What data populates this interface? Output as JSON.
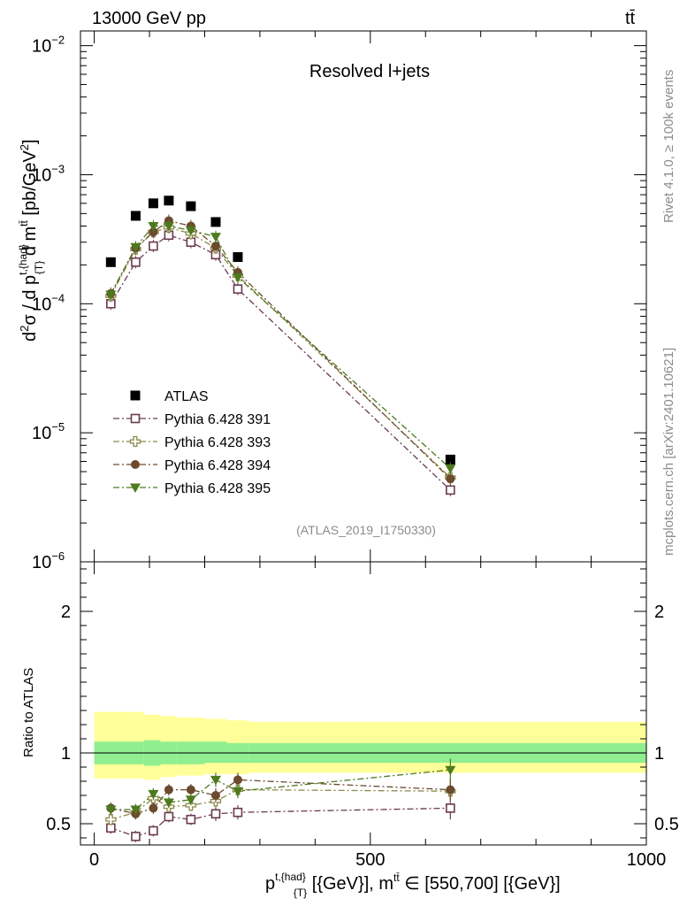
{
  "header": {
    "left_text": "13000 GeV pp",
    "right_text": "tt̄"
  },
  "side_text": {
    "rivet": "Rivet 4.1.0, ≥ 100k events",
    "mcplots": "mcplots.cern.ch [arXiv:2401.10621]"
  },
  "chart_data": [
    {
      "type": "scatter",
      "panel": "main",
      "title": "Resolved l+jets",
      "watermark": "(ATLAS_2019_I1750330)",
      "ylabel": "d²σ / d p^{t,{had}}_{T} d m^{tt̄} [pb/GeV²]",
      "yscale": "log",
      "ylim": [
        1e-06,
        0.013
      ],
      "xlim": [
        -25,
        1000
      ],
      "y_ticks": [
        {
          "value": 1e-06,
          "base": "10",
          "exp": "−6"
        },
        {
          "value": 1e-05,
          "base": "10",
          "exp": "−5"
        },
        {
          "value": 0.0001,
          "base": "10",
          "exp": "−4"
        },
        {
          "value": 0.001,
          "base": "10",
          "exp": "−3"
        },
        {
          "value": 0.01,
          "base": "10",
          "exp": "−2"
        }
      ],
      "x": [
        30,
        75,
        107,
        135,
        175,
        220,
        260,
        645
      ],
      "series": [
        {
          "name": "ATLAS",
          "marker": "square-filled",
          "color": "#000000",
          "line": "none",
          "values": [
            0.00021,
            0.00048,
            0.0006,
            0.00063,
            0.00057,
            0.00043,
            0.00023,
            6.2e-06
          ]
        },
        {
          "name": "Pythia 6.428 391",
          "marker": "square-open",
          "color": "#6b3a4f",
          "line": "dashdot",
          "values": [
            0.0001,
            0.00021,
            0.00028,
            0.00034,
            0.0003,
            0.00024,
            0.00013,
            3.6e-06
          ]
        },
        {
          "name": "Pythia 6.428 393",
          "marker": "cross-open",
          "color": "#8c8a4a",
          "line": "dashdot",
          "values": [
            0.000115,
            0.000265,
            0.00036,
            0.00039,
            0.00035,
            0.00027,
            0.000165,
            4.5e-06
          ]
        },
        {
          "name": "Pythia 6.428 394",
          "marker": "circle-filled",
          "color": "#6b4a2e",
          "line": "dashdot",
          "values": [
            0.00012,
            0.00027,
            0.00036,
            0.00044,
            0.0004,
            0.00028,
            0.000175,
            4.4e-06
          ]
        },
        {
          "name": "Pythia 6.428 395",
          "marker": "triangle-down-filled",
          "color": "#4e7a1e",
          "line": "dashdot",
          "values": [
            0.000118,
            0.000275,
            0.0004,
            0.0004,
            0.00037,
            0.00033,
            0.00016,
            5.3e-06
          ]
        }
      ]
    },
    {
      "type": "scatter",
      "panel": "ratio",
      "ylabel": "Ratio to ATLAS",
      "xlabel": "p^{t,{had}}_{T} [{GeV}], m^{tt̄} ∈ [550,700] [{GeV}]",
      "ylim": [
        0.35,
        2.35
      ],
      "xlim": [
        -25,
        1000
      ],
      "y_ticks": [
        0.5,
        1,
        2
      ],
      "y_tick_labels": [
        "0.5",
        "1",
        "2"
      ],
      "x_ticks": [
        0,
        500,
        1000
      ],
      "x_tick_labels": [
        "0",
        "500",
        "1000"
      ],
      "bands": {
        "bin_edges": [
          0,
          90,
          120,
          150,
          200,
          240,
          280,
          1000
        ],
        "stat_lo": [
          0.92,
          0.91,
          0.92,
          0.92,
          0.93,
          0.93,
          0.93,
          0.93
        ],
        "stat_hi": [
          1.08,
          1.09,
          1.08,
          1.08,
          1.08,
          1.07,
          1.07,
          1.07
        ],
        "total_lo": [
          0.82,
          0.81,
          0.83,
          0.84,
          0.85,
          0.85,
          0.86,
          0.86
        ],
        "total_hi": [
          1.29,
          1.27,
          1.26,
          1.25,
          1.24,
          1.23,
          1.22,
          1.22
        ],
        "stat_color": "#90ee90",
        "total_color": "#ffff99"
      },
      "x": [
        30,
        75,
        107,
        135,
        175,
        220,
        260,
        645
      ],
      "series": [
        {
          "name": "Pythia 6.428 391",
          "marker": "square-open",
          "color": "#6b3a4f",
          "values": [
            0.47,
            0.41,
            0.45,
            0.55,
            0.53,
            0.57,
            0.58,
            0.61
          ],
          "err": [
            0.04,
            0.04,
            0.04,
            0.04,
            0.04,
            0.05,
            0.05,
            0.08
          ]
        },
        {
          "name": "Pythia 6.428 393",
          "marker": "cross-open",
          "color": "#8c8a4a",
          "values": [
            0.53,
            0.58,
            0.68,
            0.62,
            0.63,
            0.66,
            0.74,
            0.73
          ],
          "err": [
            0.04,
            0.04,
            0.04,
            0.04,
            0.04,
            0.05,
            0.05,
            0.08
          ]
        },
        {
          "name": "Pythia 6.428 394",
          "marker": "circle-filled",
          "color": "#6b4a2e",
          "values": [
            0.61,
            0.57,
            0.61,
            0.74,
            0.74,
            0.7,
            0.81,
            0.74
          ],
          "err": [
            0.04,
            0.04,
            0.04,
            0.04,
            0.04,
            0.05,
            0.05,
            0.08
          ]
        },
        {
          "name": "Pythia 6.428 395",
          "marker": "triangle-down-filled",
          "color": "#4e7a1e",
          "values": [
            0.6,
            0.6,
            0.71,
            0.65,
            0.67,
            0.81,
            0.73,
            0.88
          ],
          "err": [
            0.04,
            0.04,
            0.04,
            0.04,
            0.04,
            0.05,
            0.05,
            0.08
          ]
        }
      ]
    }
  ]
}
